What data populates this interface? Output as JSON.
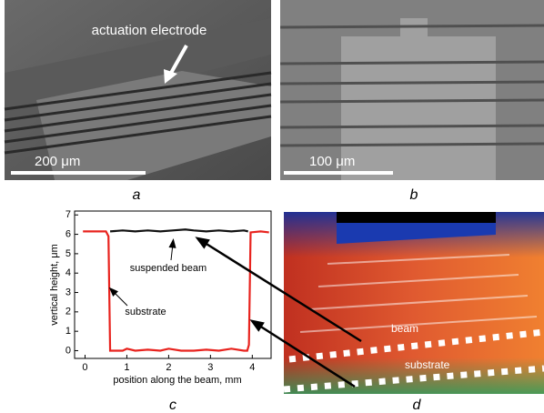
{
  "panels": {
    "a": {
      "label": "a",
      "annotation": "actuation electrode",
      "scale": "200 μm"
    },
    "b": {
      "label": "b",
      "scale": "100 μm"
    },
    "c": {
      "label": "c"
    },
    "d": {
      "label": "d",
      "beam": "beam",
      "substrate": "substrate"
    }
  },
  "chart_data": {
    "type": "line",
    "xlabel": "position along the beam, mm",
    "ylabel": "vertical height, μm",
    "xlim": [
      -0.25,
      4.45
    ],
    "ylim": [
      -0.4,
      7.2
    ],
    "xticks": [
      0,
      1,
      2,
      3,
      4
    ],
    "yticks": [
      0,
      1,
      2,
      3,
      4,
      5,
      6,
      7
    ],
    "annotations": [
      "suspended beam",
      "substrate"
    ],
    "series": [
      {
        "color": "#e8231e",
        "x": [
          -0.05,
          0.2,
          0.5,
          0.56,
          0.6,
          0.9,
          1.0,
          1.2,
          1.5,
          1.8,
          2.0,
          2.3,
          2.6,
          2.9,
          3.2,
          3.5,
          3.8,
          3.88,
          3.92,
          3.96,
          4.2,
          4.4
        ],
        "values": [
          6.15,
          6.15,
          6.15,
          5.9,
          0,
          0,
          0.1,
          0,
          0.05,
          0,
          0.1,
          0,
          0,
          0.05,
          0,
          0.1,
          0,
          0,
          0.3,
          6.1,
          6.15,
          6.1
        ]
      },
      {
        "color": "#111111",
        "x": [
          0.6,
          0.9,
          1.2,
          1.5,
          1.8,
          2.1,
          2.4,
          2.6,
          2.9,
          3.2,
          3.5,
          3.8,
          3.9
        ],
        "values": [
          6.15,
          6.2,
          6.15,
          6.2,
          6.15,
          6.2,
          6.25,
          6.2,
          6.15,
          6.2,
          6.15,
          6.2,
          6.15
        ]
      }
    ]
  }
}
